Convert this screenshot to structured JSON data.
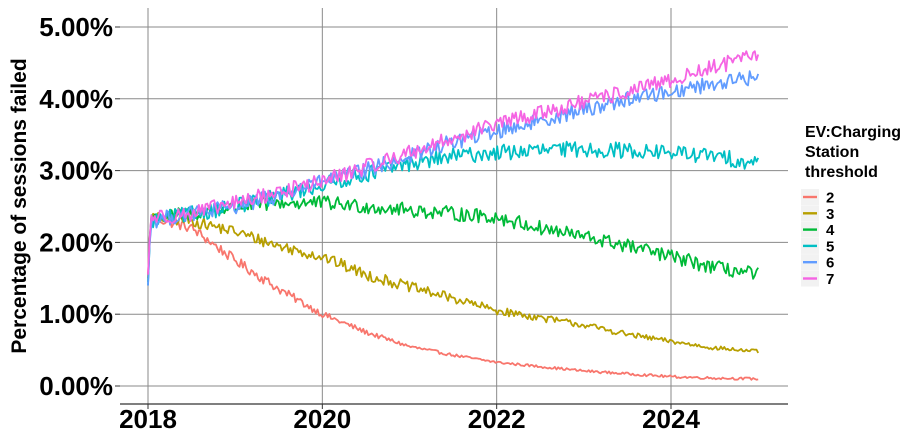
{
  "chart_data": {
    "type": "line",
    "ylabel": "Percentage of sessions failed",
    "xlabel": "",
    "xlim": [
      2018,
      2025
    ],
    "ylim": [
      0,
      5
    ],
    "xticks": [
      2018,
      2020,
      2022,
      2024
    ],
    "yticks": [
      0,
      1,
      2,
      3,
      4,
      5
    ],
    "ytick_labels": [
      "0.00%",
      "1.00%",
      "2.00%",
      "3.00%",
      "4.00%",
      "5.00%"
    ],
    "grid": true,
    "legend": {
      "title_lines": [
        "EV:Charging",
        "Station",
        "threshold"
      ],
      "position": "right"
    },
    "series": [
      {
        "name": "2",
        "color": "#F8766D",
        "noise": 0.07,
        "points": [
          [
            2018.0,
            1.55
          ],
          [
            2018.03,
            2.35
          ],
          [
            2018.5,
            2.2
          ],
          [
            2019.0,
            1.75
          ],
          [
            2019.5,
            1.35
          ],
          [
            2020.0,
            1.0
          ],
          [
            2020.5,
            0.75
          ],
          [
            2021.0,
            0.55
          ],
          [
            2021.5,
            0.43
          ],
          [
            2022.0,
            0.33
          ],
          [
            2022.5,
            0.27
          ],
          [
            2023.0,
            0.21
          ],
          [
            2023.5,
            0.17
          ],
          [
            2024.0,
            0.13
          ],
          [
            2024.5,
            0.11
          ],
          [
            2025.0,
            0.1
          ]
        ]
      },
      {
        "name": "3",
        "color": "#B79F00",
        "noise": 0.08,
        "points": [
          [
            2018.0,
            1.5
          ],
          [
            2018.03,
            2.35
          ],
          [
            2018.5,
            2.3
          ],
          [
            2019.0,
            2.15
          ],
          [
            2019.5,
            1.95
          ],
          [
            2020.0,
            1.8
          ],
          [
            2020.5,
            1.55
          ],
          [
            2021.0,
            1.38
          ],
          [
            2021.5,
            1.22
          ],
          [
            2022.0,
            1.05
          ],
          [
            2022.5,
            0.95
          ],
          [
            2023.0,
            0.85
          ],
          [
            2023.5,
            0.72
          ],
          [
            2024.0,
            0.62
          ],
          [
            2024.5,
            0.53
          ],
          [
            2025.0,
            0.48
          ]
        ]
      },
      {
        "name": "4",
        "color": "#00BA38",
        "noise": 0.1,
        "points": [
          [
            2018.0,
            1.45
          ],
          [
            2018.03,
            2.35
          ],
          [
            2018.5,
            2.4
          ],
          [
            2019.0,
            2.5
          ],
          [
            2019.5,
            2.55
          ],
          [
            2020.0,
            2.55
          ],
          [
            2020.5,
            2.5
          ],
          [
            2021.0,
            2.45
          ],
          [
            2021.5,
            2.4
          ],
          [
            2022.0,
            2.35
          ],
          [
            2022.5,
            2.2
          ],
          [
            2023.0,
            2.08
          ],
          [
            2023.5,
            1.95
          ],
          [
            2024.0,
            1.8
          ],
          [
            2024.5,
            1.65
          ],
          [
            2025.0,
            1.55
          ]
        ]
      },
      {
        "name": "5",
        "color": "#00BFC4",
        "noise": 0.11,
        "points": [
          [
            2018.0,
            1.4
          ],
          [
            2018.03,
            2.3
          ],
          [
            2018.5,
            2.4
          ],
          [
            2019.0,
            2.5
          ],
          [
            2019.5,
            2.65
          ],
          [
            2020.0,
            2.8
          ],
          [
            2020.5,
            2.95
          ],
          [
            2021.0,
            3.1
          ],
          [
            2021.5,
            3.2
          ],
          [
            2022.0,
            3.25
          ],
          [
            2022.5,
            3.28
          ],
          [
            2023.0,
            3.3
          ],
          [
            2023.5,
            3.28
          ],
          [
            2024.0,
            3.25
          ],
          [
            2024.5,
            3.2
          ],
          [
            2025.0,
            3.1
          ]
        ]
      },
      {
        "name": "6",
        "color": "#619CFF",
        "noise": 0.11,
        "points": [
          [
            2018.0,
            1.4
          ],
          [
            2018.03,
            2.3
          ],
          [
            2018.5,
            2.4
          ],
          [
            2019.0,
            2.5
          ],
          [
            2019.5,
            2.65
          ],
          [
            2020.0,
            2.85
          ],
          [
            2020.5,
            3.0
          ],
          [
            2021.0,
            3.2
          ],
          [
            2021.5,
            3.4
          ],
          [
            2022.0,
            3.55
          ],
          [
            2022.5,
            3.7
          ],
          [
            2023.0,
            3.85
          ],
          [
            2023.5,
            4.0
          ],
          [
            2024.0,
            4.1
          ],
          [
            2024.5,
            4.22
          ],
          [
            2025.0,
            4.3
          ]
        ]
      },
      {
        "name": "7",
        "color": "#F564E3",
        "noise": 0.11,
        "points": [
          [
            2018.0,
            1.55
          ],
          [
            2018.03,
            2.35
          ],
          [
            2018.5,
            2.4
          ],
          [
            2019.0,
            2.55
          ],
          [
            2019.5,
            2.7
          ],
          [
            2020.0,
            2.85
          ],
          [
            2020.5,
            3.05
          ],
          [
            2021.0,
            3.25
          ],
          [
            2021.5,
            3.45
          ],
          [
            2022.0,
            3.65
          ],
          [
            2022.5,
            3.8
          ],
          [
            2023.0,
            3.95
          ],
          [
            2023.5,
            4.1
          ],
          [
            2024.0,
            4.25
          ],
          [
            2024.5,
            4.45
          ],
          [
            2025.0,
            4.6
          ]
        ]
      }
    ]
  }
}
